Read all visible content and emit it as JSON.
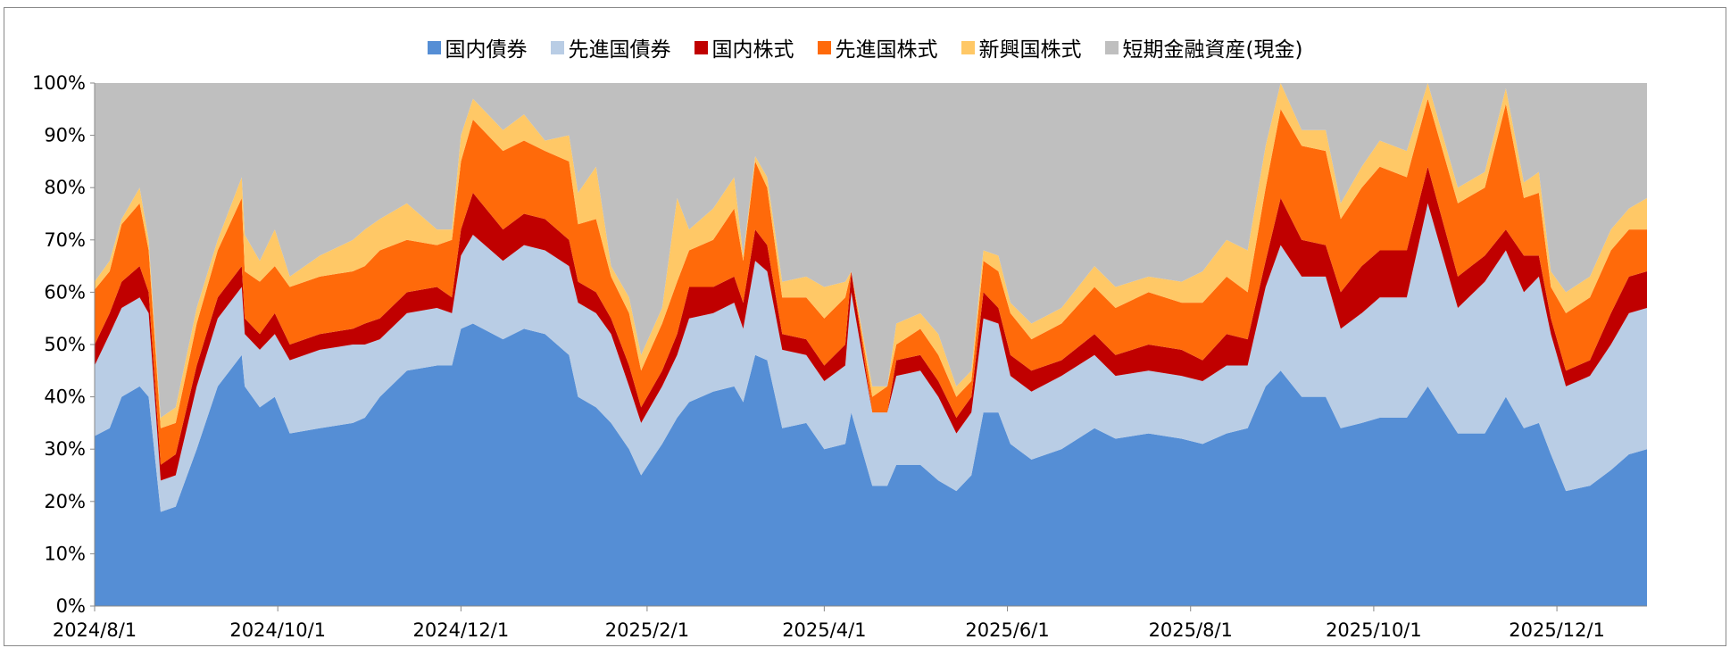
{
  "chart_data": {
    "type": "stacked-area",
    "x": [
      "2024/8/1",
      "2024/8/6",
      "2024/8/10",
      "2024/8/16",
      "2024/8/19",
      "2024/8/23",
      "2024/8/28",
      "2024/9/4",
      "2024/9/11",
      "2024/9/19",
      "2024/9/20",
      "2024/9/25",
      "2024/9/30",
      "2024/10/5",
      "2024/10/15",
      "2024/10/26",
      "2024/10/30",
      "2024/11/4",
      "2024/11/13",
      "2024/11/23",
      "2024/11/28",
      "2024/12/1",
      "2024/12/5",
      "2024/12/15",
      "2024/12/22",
      "2024/12/29",
      "2025/1/6",
      "2025/1/9",
      "2025/1/15",
      "2025/1/20",
      "2025/1/26",
      "2025/1/30",
      "2025/2/6",
      "2025/2/11",
      "2025/2/15",
      "2025/2/23",
      "2025/3/2",
      "2025/3/5",
      "2025/3/9",
      "2025/3/13",
      "2025/3/18",
      "2025/3/26",
      "2025/4/1",
      "2025/4/8",
      "2025/4/10",
      "2025/4/17",
      "2025/4/22",
      "2025/4/25",
      "2025/5/3",
      "2025/5/9",
      "2025/5/15",
      "2025/5/20",
      "2025/5/24",
      "2025/5/29",
      "2025/6/2",
      "2025/6/9",
      "2025/6/19",
      "2025/6/30",
      "2025/7/7",
      "2025/7/18",
      "2025/7/29",
      "2025/8/5",
      "2025/8/13",
      "2025/8/20",
      "2025/8/26",
      "2025/8/31",
      "2025/9/7",
      "2025/9/15",
      "2025/9/20",
      "2025/9/27",
      "2025/10/3",
      "2025/10/12",
      "2025/10/19",
      "2025/10/29",
      "2025/11/7",
      "2025/11/14",
      "2025/11/20",
      "2025/11/25",
      "2025/11/29",
      "2025/12/4",
      "2025/12/12",
      "2025/12/19",
      "2025/12/25",
      "2025/12/31"
    ],
    "series": [
      {
        "name": "国内債券",
        "color": "#558ed5",
        "values": [
          32.5,
          34,
          40,
          42,
          40,
          18,
          19,
          30,
          42,
          48,
          42,
          38,
          40,
          33,
          34,
          35,
          36,
          40,
          45,
          46,
          46,
          53,
          54,
          51,
          53,
          52,
          48,
          40,
          38,
          35,
          30,
          25,
          31,
          36,
          39,
          41,
          42,
          39,
          48,
          47,
          34,
          35,
          30,
          31,
          37,
          23,
          23,
          27,
          27,
          24,
          22,
          25,
          37,
          37,
          31,
          28,
          30,
          34,
          32,
          33,
          32,
          31,
          33,
          34,
          42,
          45,
          40,
          40,
          34,
          35,
          36,
          36,
          42,
          33,
          33,
          40,
          34,
          35,
          29,
          22,
          23,
          26,
          29,
          30
        ]
      },
      {
        "name": "先進国債券",
        "color": "#b9cde5",
        "values": [
          13.5,
          18,
          17,
          17,
          16,
          6,
          6,
          12,
          13,
          13,
          10,
          11,
          12,
          14,
          15,
          15,
          14,
          11,
          11,
          11,
          10,
          14,
          17,
          15,
          16,
          16,
          17,
          18,
          18,
          17,
          12,
          10,
          11,
          12,
          16,
          15,
          16,
          14,
          18,
          17,
          15,
          13,
          13,
          15,
          23,
          14,
          14,
          17,
          18,
          16,
          11,
          12,
          18,
          17,
          13,
          13,
          14,
          14,
          12,
          12,
          12,
          12,
          13,
          12,
          19,
          24,
          23,
          23,
          19,
          21,
          23,
          23,
          35,
          24,
          29,
          28,
          26,
          28,
          23,
          20,
          21,
          24,
          27,
          27
        ]
      },
      {
        "name": "国内株式",
        "color": "#c00000",
        "values": [
          4,
          4,
          5,
          6,
          4,
          3,
          4,
          4,
          4,
          4,
          3,
          3,
          4,
          3,
          3,
          3,
          4,
          4,
          4,
          4,
          3,
          5,
          8,
          6,
          6,
          6,
          5,
          4,
          4,
          3,
          4,
          3,
          3,
          4,
          6,
          5,
          5,
          5,
          6,
          5,
          3,
          3,
          3,
          4,
          4,
          0,
          0,
          3,
          3,
          3,
          3,
          3,
          5,
          3,
          4,
          4,
          3,
          4,
          4,
          5,
          5,
          4,
          6,
          5,
          5,
          9,
          7,
          6,
          7,
          9,
          9,
          9,
          7,
          6,
          5,
          4,
          7,
          4,
          3,
          3,
          3,
          6,
          7,
          7
        ]
      },
      {
        "name": "先進国株式",
        "color": "#ff6a0a",
        "values": [
          10.5,
          8,
          11,
          12,
          8,
          7,
          6,
          8,
          9,
          13,
          9,
          10,
          9,
          11,
          11,
          11,
          11,
          13,
          10,
          8,
          11,
          13,
          14,
          15,
          14,
          13,
          15,
          11,
          14,
          8,
          10,
          7,
          9,
          10,
          7,
          9,
          13,
          8,
          13,
          11,
          7,
          8,
          9,
          9,
          0,
          3,
          5,
          3,
          5,
          5,
          4,
          3,
          6,
          7,
          8,
          6,
          7,
          9,
          9,
          10,
          9,
          11,
          11,
          9,
          14,
          17,
          18,
          18,
          14,
          15,
          16,
          14,
          13,
          14,
          13,
          24,
          11,
          12,
          6,
          11,
          12,
          12,
          9,
          8
        ]
      },
      {
        "name": "新興国株式",
        "color": "#ffc866",
        "values": [
          1.5,
          2,
          1,
          3,
          2,
          2,
          3,
          3,
          2,
          4,
          7,
          4,
          7,
          2,
          4,
          6,
          7,
          6,
          7,
          3,
          2,
          5,
          4,
          4,
          5,
          2,
          5,
          6,
          10,
          2,
          3,
          3,
          3,
          16,
          4,
          6,
          6,
          1,
          1,
          2,
          3,
          4,
          6,
          3,
          0,
          2,
          0,
          4,
          3,
          4,
          2,
          2,
          2,
          3,
          2,
          3,
          3,
          4,
          4,
          3,
          4,
          6,
          7,
          8,
          8,
          5,
          3,
          4,
          3,
          4,
          5,
          5,
          3,
          3,
          3,
          3,
          3,
          4,
          3,
          4,
          4,
          4,
          4,
          6
        ]
      },
      {
        "name": "短期金融資産(現金)",
        "color": "#bfbfbf",
        "values": [
          38,
          34,
          26,
          20,
          30,
          64,
          62,
          43,
          30,
          18,
          29,
          34,
          28,
          37,
          33,
          30,
          28,
          26,
          23,
          28,
          28,
          10,
          3,
          9,
          6,
          11,
          10,
          21,
          16,
          35,
          41,
          52,
          43,
          22,
          28,
          24,
          18,
          33,
          14,
          18,
          38,
          37,
          39,
          38,
          36,
          58,
          58,
          46,
          44,
          48,
          58,
          55,
          32,
          33,
          42,
          46,
          43,
          35,
          39,
          37,
          38,
          36,
          30,
          32,
          12,
          0,
          9,
          9,
          23,
          16,
          11,
          13,
          0,
          20,
          17,
          1,
          19,
          17,
          36,
          40,
          37,
          28,
          24,
          22
        ]
      }
    ],
    "xlim": [
      "2024/8/1",
      "2025/12/31"
    ],
    "xticks": [
      "2024/8/1",
      "2024/10/1",
      "2024/12/1",
      "2025/2/1",
      "2025/4/1",
      "2025/6/1",
      "2025/8/1",
      "2025/10/1",
      "2025/12/1"
    ],
    "ylim": [
      0,
      100
    ],
    "yticks": [
      {
        "value": 0,
        "label": "0%"
      },
      {
        "value": 10,
        "label": "10%"
      },
      {
        "value": 20,
        "label": "20%"
      },
      {
        "value": 30,
        "label": "30%"
      },
      {
        "value": 40,
        "label": "40%"
      },
      {
        "value": 50,
        "label": "50%"
      },
      {
        "value": 60,
        "label": "60%"
      },
      {
        "value": 70,
        "label": "70%"
      },
      {
        "value": 80,
        "label": "80%"
      },
      {
        "value": 90,
        "label": "90%"
      },
      {
        "value": 100,
        "label": "100%"
      }
    ],
    "legend": "top"
  }
}
